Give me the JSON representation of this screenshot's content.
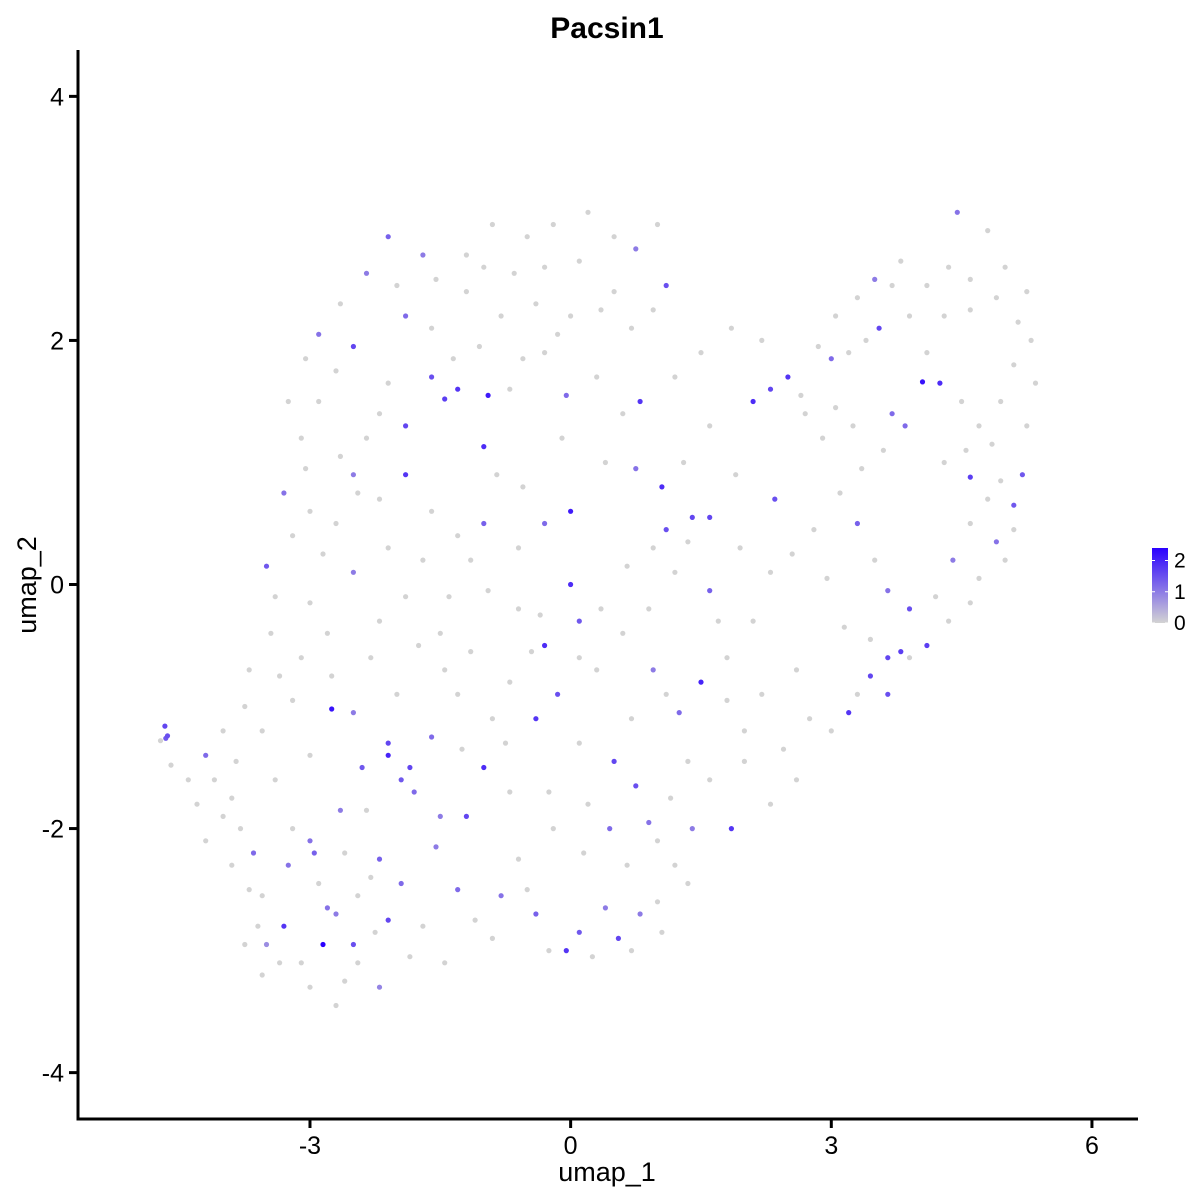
{
  "chart_data": {
    "type": "scatter",
    "title": "Pacsin1",
    "xlabel": "umap_1",
    "ylabel": "umap_2",
    "xlim": [
      -5.67,
      6.53
    ],
    "ylim": [
      -4.38,
      4.38
    ],
    "xticks": [
      -3,
      0,
      3,
      6
    ],
    "yticks": [
      -4,
      -2,
      0,
      2,
      4
    ],
    "grid": false,
    "legend": {
      "type": "colorbar",
      "placement": "right",
      "ticks": [
        0,
        1,
        2
      ],
      "low_color": "#d3d3d3",
      "high_color": "#2a00ff",
      "min": 0,
      "max": 2.4
    },
    "points": [
      [
        -4.67,
        -1.16,
        1.6
      ],
      [
        -4.66,
        -1.26,
        1.4
      ],
      [
        -4.64,
        -1.24,
        1.5
      ],
      [
        -4.72,
        -1.28,
        0.0
      ],
      [
        -4.6,
        -1.48,
        0.0
      ],
      [
        -4.2,
        -1.4,
        1.2
      ],
      [
        -4.1,
        -1.6,
        0.0
      ],
      [
        -4.0,
        -1.9,
        0.0
      ],
      [
        -3.9,
        -2.3,
        0.0
      ],
      [
        -4.3,
        -1.8,
        0.0
      ],
      [
        -3.7,
        -2.5,
        0.0
      ],
      [
        -3.6,
        -2.8,
        0.0
      ],
      [
        -3.5,
        -2.95,
        0.8
      ],
      [
        -3.3,
        -2.8,
        1.8
      ],
      [
        -3.1,
        -3.1,
        0.0
      ],
      [
        -2.85,
        -2.95,
        2.4
      ],
      [
        -2.7,
        -2.7,
        1.0
      ],
      [
        -2.5,
        -2.95,
        1.5
      ],
      [
        -2.45,
        -3.1,
        0.0
      ],
      [
        -2.2,
        -3.3,
        0.9
      ],
      [
        -2.1,
        -2.75,
        1.6
      ],
      [
        -2.3,
        -2.4,
        0.0
      ],
      [
        -2.6,
        -2.2,
        0.0
      ],
      [
        -3.0,
        -2.1,
        1.1
      ],
      [
        -3.2,
        -2.0,
        0.0
      ],
      [
        -3.8,
        -2.0,
        0.0
      ],
      [
        -3.4,
        -1.6,
        0.0
      ],
      [
        -3.0,
        -1.4,
        0.0
      ],
      [
        -2.75,
        -1.02,
        2.2
      ],
      [
        -2.5,
        -1.05,
        1.0
      ],
      [
        -2.4,
        -1.5,
        1.4
      ],
      [
        -2.1,
        -1.3,
        1.6
      ],
      [
        -2.1,
        -1.4,
        2.0
      ],
      [
        -1.8,
        -1.7,
        1.2
      ],
      [
        -1.5,
        -1.9,
        1.0
      ],
      [
        -1.2,
        -1.9,
        1.6
      ],
      [
        -1.0,
        -1.5,
        1.9
      ],
      [
        -0.7,
        -1.7,
        0.0
      ],
      [
        -0.5,
        -2.5,
        0.0
      ],
      [
        -0.4,
        -2.7,
        1.3
      ],
      [
        -0.05,
        -3.0,
        1.8
      ],
      [
        0.1,
        -2.85,
        1.4
      ],
      [
        0.4,
        -2.65,
        1.0
      ],
      [
        0.55,
        -2.9,
        1.6
      ],
      [
        0.8,
        -2.7,
        1.0
      ],
      [
        1.0,
        -2.6,
        0.0
      ],
      [
        1.2,
        -2.3,
        0.0
      ],
      [
        1.4,
        -2.0,
        1.0
      ],
      [
        1.85,
        -2.0,
        1.8
      ],
      [
        2.3,
        -1.8,
        0.0
      ],
      [
        2.6,
        -1.6,
        0.0
      ],
      [
        2.0,
        -1.2,
        0.0
      ],
      [
        1.5,
        -0.8,
        2.0
      ],
      [
        1.1,
        -0.9,
        0.0
      ],
      [
        0.7,
        -1.1,
        0.0
      ],
      [
        0.5,
        -1.45,
        1.6
      ],
      [
        0.1,
        -1.3,
        0.0
      ],
      [
        -0.4,
        -1.1,
        1.8
      ],
      [
        -0.7,
        -0.8,
        0.0
      ],
      [
        -0.9,
        -1.1,
        0.0
      ],
      [
        -1.3,
        -0.9,
        0.0
      ],
      [
        -1.5,
        -0.4,
        0.0
      ],
      [
        -1.9,
        -0.1,
        0.0
      ],
      [
        -2.2,
        -0.3,
        0.0
      ],
      [
        -2.5,
        0.1,
        1.0
      ],
      [
        -2.8,
        -0.4,
        0.0
      ],
      [
        -3.1,
        -0.6,
        0.0
      ],
      [
        -3.4,
        -0.1,
        0.0
      ],
      [
        -3.5,
        0.15,
        1.4
      ],
      [
        -3.2,
        0.4,
        0.0
      ],
      [
        -3.0,
        0.6,
        0.0
      ],
      [
        -2.7,
        0.5,
        0.0
      ],
      [
        -2.5,
        0.9,
        1.0
      ],
      [
        -2.2,
        0.7,
        0.0
      ],
      [
        -1.9,
        0.9,
        1.8
      ],
      [
        -1.6,
        0.6,
        0.0
      ],
      [
        -1.3,
        0.4,
        0.0
      ],
      [
        -1.0,
        0.5,
        1.3
      ],
      [
        -0.6,
        0.3,
        0.0
      ],
      [
        -0.3,
        0.5,
        1.2
      ],
      [
        0.0,
        0.6,
        2.1
      ],
      [
        0.0,
        0.0,
        1.9
      ],
      [
        -0.3,
        -0.5,
        1.9
      ],
      [
        0.1,
        -0.3,
        1.4
      ],
      [
        0.3,
        -0.7,
        0.0
      ],
      [
        0.6,
        -0.4,
        0.0
      ],
      [
        0.9,
        -0.2,
        0.0
      ],
      [
        1.2,
        0.1,
        0.0
      ],
      [
        1.6,
        0.55,
        1.6
      ],
      [
        1.4,
        0.55,
        1.6
      ],
      [
        1.1,
        0.45,
        1.5
      ],
      [
        1.05,
        0.8,
        1.9
      ],
      [
        0.8,
        1.5,
        1.8
      ],
      [
        0.6,
        1.4,
        0.0
      ],
      [
        0.3,
        1.7,
        0.0
      ],
      [
        -0.05,
        1.55,
        1.2
      ],
      [
        -0.3,
        1.9,
        0.0
      ],
      [
        -0.7,
        1.6,
        0.0
      ],
      [
        -0.95,
        1.55,
        2.1
      ],
      [
        -1.3,
        1.6,
        1.8
      ],
      [
        -1.6,
        1.7,
        1.5
      ],
      [
        -1.9,
        1.3,
        1.6
      ],
      [
        -2.2,
        1.4,
        0.0
      ],
      [
        -2.5,
        1.95,
        1.6
      ],
      [
        -2.7,
        1.75,
        0.0
      ],
      [
        -2.9,
        1.5,
        0.0
      ],
      [
        -3.1,
        1.2,
        0.0
      ],
      [
        -3.3,
        0.75,
        1.1
      ],
      [
        -2.1,
        2.85,
        1.3
      ],
      [
        -1.7,
        2.7,
        1.0
      ],
      [
        -1.2,
        2.7,
        0.0
      ],
      [
        -0.9,
        2.95,
        0.0
      ],
      [
        -0.5,
        2.85,
        0.0
      ],
      [
        -0.2,
        2.95,
        0.0
      ],
      [
        0.2,
        3.05,
        0.0
      ],
      [
        0.5,
        2.85,
        0.0
      ],
      [
        0.75,
        2.75,
        1.0
      ],
      [
        1.0,
        2.95,
        0.0
      ],
      [
        1.1,
        2.45,
        1.5
      ],
      [
        0.5,
        2.4,
        0.0
      ],
      [
        0.0,
        2.2,
        0.0
      ],
      [
        -0.4,
        2.3,
        0.0
      ],
      [
        -0.8,
        2.2,
        0.0
      ],
      [
        -1.2,
        2.4,
        0.0
      ],
      [
        -1.6,
        2.1,
        0.0
      ],
      [
        -1.9,
        2.2,
        1.2
      ],
      [
        -1.45,
        1.52,
        1.7
      ],
      [
        -1.0,
        1.13,
        1.9
      ],
      [
        -1.15,
        0.2,
        0.0
      ],
      [
        -2.45,
        0.75,
        0.0
      ],
      [
        1.6,
        1.3,
        0.0
      ],
      [
        1.9,
        0.9,
        0.0
      ],
      [
        2.1,
        1.5,
        1.9
      ],
      [
        2.3,
        1.6,
        1.6
      ],
      [
        2.35,
        0.7,
        1.5
      ],
      [
        2.5,
        1.7,
        1.8
      ],
      [
        2.7,
        1.4,
        0.0
      ],
      [
        2.9,
        1.2,
        0.0
      ],
      [
        3.05,
        1.45,
        0.0
      ],
      [
        3.0,
        1.85,
        1.2
      ],
      [
        3.2,
        1.9,
        0.0
      ],
      [
        3.4,
        2.0,
        0.0
      ],
      [
        3.55,
        2.1,
        1.6
      ],
      [
        3.5,
        2.5,
        1.0
      ],
      [
        3.7,
        2.45,
        0.0
      ],
      [
        3.9,
        2.2,
        0.0
      ],
      [
        4.05,
        1.66,
        2.2
      ],
      [
        4.25,
        1.65,
        1.9
      ],
      [
        4.5,
        1.5,
        0.0
      ],
      [
        4.7,
        1.3,
        0.0
      ],
      [
        4.95,
        1.5,
        0.0
      ],
      [
        5.1,
        1.8,
        0.0
      ],
      [
        5.3,
        2.0,
        0.0
      ],
      [
        5.25,
        2.4,
        0.0
      ],
      [
        5.0,
        2.6,
        0.0
      ],
      [
        4.8,
        2.9,
        0.0
      ],
      [
        4.45,
        3.05,
        1.1
      ],
      [
        4.6,
        2.5,
        0.0
      ],
      [
        4.3,
        2.2,
        0.0
      ],
      [
        4.1,
        1.9,
        0.0
      ],
      [
        3.85,
        1.3,
        1.2
      ],
      [
        3.6,
        1.1,
        0.0
      ],
      [
        3.35,
        0.95,
        0.0
      ],
      [
        3.1,
        0.75,
        0.0
      ],
      [
        3.3,
        0.5,
        1.3
      ],
      [
        3.5,
        0.2,
        0.0
      ],
      [
        3.65,
        -0.05,
        1.1
      ],
      [
        3.9,
        -0.2,
        1.5
      ],
      [
        4.1,
        -0.5,
        1.7
      ],
      [
        3.9,
        -0.6,
        0.0
      ],
      [
        3.65,
        -0.6,
        1.6
      ],
      [
        3.45,
        -0.75,
        1.6
      ],
      [
        3.3,
        -0.9,
        0.0
      ],
      [
        3.2,
        -1.05,
        1.8
      ],
      [
        3.0,
        -1.2,
        0.0
      ],
      [
        3.65,
        -0.9,
        1.5
      ],
      [
        3.8,
        -0.55,
        1.7
      ],
      [
        4.2,
        -0.1,
        0.0
      ],
      [
        4.4,
        0.2,
        1.0
      ],
      [
        4.6,
        0.5,
        0.0
      ],
      [
        4.8,
        0.7,
        0.0
      ],
      [
        4.95,
        0.85,
        0.0
      ],
      [
        5.2,
        0.9,
        1.4
      ],
      [
        5.1,
        0.65,
        1.4
      ],
      [
        4.6,
        0.88,
        1.7
      ],
      [
        4.9,
        0.35,
        1.1
      ],
      [
        4.7,
        0.05,
        0.0
      ],
      [
        5.0,
        0.2,
        0.0
      ],
      [
        2.8,
        0.45,
        0.0
      ],
      [
        2.3,
        0.1,
        0.0
      ],
      [
        2.1,
        -0.3,
        0.0
      ],
      [
        1.8,
        -0.6,
        0.0
      ],
      [
        1.6,
        -0.05,
        1.3
      ],
      [
        1.7,
        -0.3,
        0.0
      ],
      [
        -0.15,
        -0.9,
        1.5
      ],
      [
        0.35,
        -0.2,
        0.0
      ],
      [
        -0.6,
        -0.2,
        0.0
      ],
      [
        -1.85,
        -1.5,
        1.6
      ],
      [
        -1.95,
        -1.6,
        1.4
      ],
      [
        -2.65,
        -1.85,
        1.0
      ],
      [
        -2.95,
        -2.2,
        1.3
      ],
      [
        -3.25,
        -2.3,
        1.1
      ],
      [
        -3.55,
        -2.55,
        0.0
      ],
      [
        -2.8,
        -2.65,
        1.1
      ],
      [
        -1.55,
        -2.15,
        1.0
      ],
      [
        -1.3,
        -2.5,
        1.2
      ],
      [
        -0.9,
        -2.9,
        0.0
      ],
      [
        -0.8,
        -2.55,
        1.1
      ],
      [
        -0.6,
        -2.25,
        0.0
      ],
      [
        -0.2,
        -2.0,
        0.0
      ],
      [
        0.2,
        -1.8,
        0.0
      ],
      [
        0.15,
        -2.2,
        0.0
      ],
      [
        0.45,
        -2.0,
        1.2
      ],
      [
        0.65,
        -2.3,
        0.0
      ],
      [
        1.0,
        -2.1,
        0.0
      ],
      [
        1.6,
        -1.6,
        0.0
      ],
      [
        1.25,
        -1.05,
        1.2
      ],
      [
        0.95,
        -0.7,
        1.0
      ],
      [
        0.1,
        -0.6,
        0.0
      ],
      [
        -0.45,
        -0.55,
        0.0
      ],
      [
        -1.4,
        -0.1,
        0.0
      ],
      [
        -1.75,
        -0.5,
        0.0
      ],
      [
        -2.3,
        -0.6,
        0.0
      ],
      [
        -2.75,
        -0.75,
        0.0
      ],
      [
        -3.2,
        -0.95,
        0.0
      ],
      [
        -3.55,
        -1.2,
        0.0
      ],
      [
        -3.85,
        -1.45,
        0.0
      ],
      [
        -3.9,
        -1.75,
        0.0
      ],
      [
        -4.2,
        -2.1,
        0.0
      ],
      [
        -3.65,
        -2.2,
        1.2
      ],
      [
        -2.2,
        -2.25,
        1.3
      ],
      [
        -1.95,
        -2.45,
        1.2
      ],
      [
        -1.7,
        -2.8,
        0.0
      ],
      [
        -2.45,
        -2.55,
        0.0
      ],
      [
        -2.9,
        -2.45,
        0.0
      ],
      [
        -2.35,
        -1.85,
        0.0
      ],
      [
        -1.6,
        -1.25,
        1.2
      ],
      [
        -1.25,
        -1.35,
        0.0
      ],
      [
        -0.75,
        -1.3,
        0.0
      ],
      [
        -0.25,
        -1.7,
        0.0
      ],
      [
        0.75,
        -1.65,
        1.5
      ],
      [
        0.9,
        -1.95,
        1.1
      ],
      [
        1.15,
        -1.75,
        0.0
      ],
      [
        2.0,
        -1.45,
        0.0
      ],
      [
        2.45,
        -1.35,
        0.0
      ],
      [
        2.75,
        -1.1,
        0.0
      ],
      [
        2.6,
        -0.7,
        0.0
      ],
      [
        2.2,
        -0.9,
        0.0
      ],
      [
        1.8,
        -0.95,
        0.0
      ],
      [
        1.35,
        -1.45,
        0.0
      ],
      [
        -2.1,
        0.3,
        0.0
      ],
      [
        -1.7,
        0.2,
        0.0
      ],
      [
        -0.95,
        -0.05,
        0.0
      ],
      [
        -0.85,
        0.9,
        0.0
      ],
      [
        -0.55,
        0.8,
        0.0
      ],
      [
        -0.1,
        1.2,
        0.0
      ],
      [
        0.4,
        1.0,
        0.0
      ],
      [
        0.75,
        0.95,
        1.1
      ],
      [
        1.3,
        1.0,
        0.0
      ],
      [
        1.2,
        1.7,
        0.0
      ],
      [
        1.5,
        1.9,
        0.0
      ],
      [
        1.85,
        2.1,
        0.0
      ],
      [
        2.2,
        2.0,
        0.0
      ],
      [
        2.65,
        1.55,
        0.0
      ],
      [
        3.25,
        1.3,
        0.0
      ],
      [
        3.7,
        1.4,
        1.2
      ],
      [
        4.3,
        1.0,
        0.0
      ],
      [
        4.55,
        1.1,
        0.0
      ],
      [
        4.85,
        1.15,
        0.0
      ],
      [
        5.25,
        1.3,
        0.0
      ],
      [
        5.35,
        1.65,
        0.0
      ],
      [
        5.15,
        2.15,
        0.0
      ],
      [
        4.9,
        2.35,
        0.0
      ],
      [
        4.6,
        2.25,
        0.0
      ],
      [
        4.35,
        2.6,
        0.0
      ],
      [
        4.1,
        2.45,
        0.0
      ],
      [
        3.8,
        2.65,
        0.0
      ],
      [
        3.3,
        2.35,
        0.0
      ],
      [
        3.05,
        2.2,
        0.0
      ],
      [
        2.85,
        1.95,
        0.0
      ],
      [
        -2.9,
        2.05,
        1.1
      ],
      [
        -2.65,
        2.3,
        0.0
      ],
      [
        -2.35,
        2.55,
        1.0
      ],
      [
        -2.0,
        2.45,
        0.0
      ],
      [
        -1.55,
        2.5,
        0.0
      ],
      [
        -1.0,
        2.6,
        0.0
      ],
      [
        -0.65,
        2.55,
        0.0
      ],
      [
        -0.3,
        2.6,
        0.0
      ],
      [
        0.1,
        2.65,
        0.0
      ],
      [
        0.35,
        2.25,
        0.0
      ],
      [
        0.7,
        2.1,
        0.0
      ],
      [
        0.95,
        2.25,
        0.0
      ],
      [
        -0.15,
        2.05,
        0.0
      ],
      [
        -0.55,
        1.85,
        0.0
      ],
      [
        -1.05,
        1.95,
        0.0
      ],
      [
        -1.35,
        1.85,
        0.0
      ],
      [
        -2.1,
        1.65,
        0.0
      ],
      [
        -2.35,
        1.2,
        0.0
      ],
      [
        -2.65,
        1.05,
        0.0
      ],
      [
        -3.05,
        0.95,
        0.0
      ],
      [
        -3.25,
        1.5,
        0.0
      ],
      [
        -3.05,
        1.85,
        0.0
      ],
      [
        -2.85,
        0.25,
        0.0
      ],
      [
        -3.0,
        -0.15,
        0.0
      ],
      [
        -3.45,
        -0.4,
        0.0
      ],
      [
        -3.7,
        -0.7,
        0.0
      ],
      [
        -3.35,
        -0.75,
        0.0
      ],
      [
        -4.0,
        -1.2,
        0.0
      ],
      [
        -3.75,
        -1.0,
        0.0
      ],
      [
        -4.4,
        -1.6,
        0.0
      ],
      [
        -2.0,
        -0.9,
        0.0
      ],
      [
        -1.45,
        -0.7,
        0.0
      ],
      [
        -1.15,
        -0.55,
        0.0
      ],
      [
        -0.35,
        -0.25,
        0.0
      ],
      [
        0.65,
        0.15,
        0.0
      ],
      [
        0.95,
        0.3,
        0.0
      ],
      [
        1.35,
        0.35,
        0.0
      ],
      [
        1.95,
        0.3,
        0.0
      ],
      [
        2.55,
        0.25,
        0.0
      ],
      [
        2.95,
        0.05,
        0.0
      ],
      [
        3.15,
        -0.35,
        0.0
      ],
      [
        3.45,
        -0.45,
        0.0
      ],
      [
        4.35,
        -0.3,
        0.0
      ],
      [
        4.6,
        -0.15,
        0.0
      ],
      [
        5.1,
        0.45,
        0.0
      ],
      [
        -2.25,
        -2.85,
        0.0
      ],
      [
        -1.85,
        -3.05,
        0.0
      ],
      [
        -2.6,
        -3.25,
        0.0
      ],
      [
        -2.7,
        -3.45,
        0.0
      ],
      [
        -3.0,
        -3.3,
        0.0
      ],
      [
        -3.35,
        -3.1,
        0.0
      ],
      [
        -3.55,
        -3.2,
        0.0
      ],
      [
        -3.75,
        -2.95,
        0.0
      ],
      [
        -1.45,
        -3.1,
        0.0
      ],
      [
        -1.1,
        -2.75,
        0.0
      ],
      [
        -0.25,
        -3.0,
        0.0
      ],
      [
        0.25,
        -3.05,
        0.0
      ],
      [
        0.7,
        -3.0,
        0.0
      ],
      [
        1.05,
        -2.85,
        0.0
      ],
      [
        1.35,
        -2.45,
        0.0
      ]
    ]
  }
}
